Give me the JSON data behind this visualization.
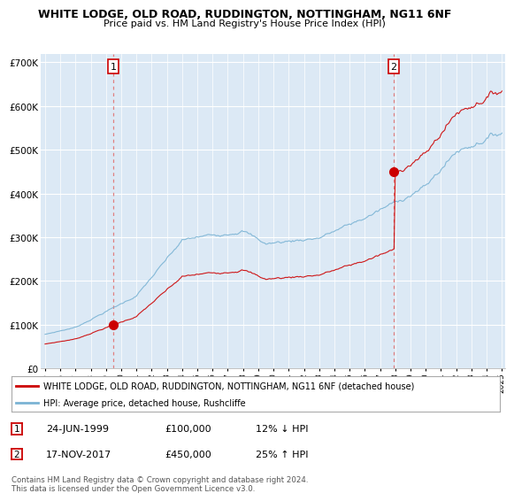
{
  "title": "WHITE LODGE, OLD ROAD, RUDDINGTON, NOTTINGHAM, NG11 6NF",
  "subtitle": "Price paid vs. HM Land Registry's House Price Index (HPI)",
  "sale1_date": 1999.48,
  "sale1_price": 100000,
  "sale1_label": "1",
  "sale1_annotation": "24-JUN-1999",
  "sale1_value_str": "£100,000",
  "sale1_hpi_str": "12% ↓ HPI",
  "sale2_date": 2017.89,
  "sale2_price": 450000,
  "sale2_label": "2",
  "sale2_annotation": "17-NOV-2017",
  "sale2_value_str": "£450,000",
  "sale2_hpi_str": "25% ↑ HPI",
  "hpi_color": "#7ab3d4",
  "price_color": "#cc0000",
  "dashed_color": "#e08080",
  "legend_label1": "WHITE LODGE, OLD ROAD, RUDDINGTON, NOTTINGHAM, NG11 6NF (detached house)",
  "legend_label2": "HPI: Average price, detached house, Rushcliffe",
  "footer": "Contains HM Land Registry data © Crown copyright and database right 2024.\nThis data is licensed under the Open Government Licence v3.0.",
  "ylim": [
    0,
    720000
  ],
  "yticks": [
    0,
    100000,
    200000,
    300000,
    400000,
    500000,
    600000,
    700000
  ],
  "ytick_labels": [
    "£0",
    "£100K",
    "£200K",
    "£300K",
    "£400K",
    "£500K",
    "£600K",
    "£700K"
  ],
  "background_color": "#ffffff",
  "plot_bg_color": "#dce9f5"
}
